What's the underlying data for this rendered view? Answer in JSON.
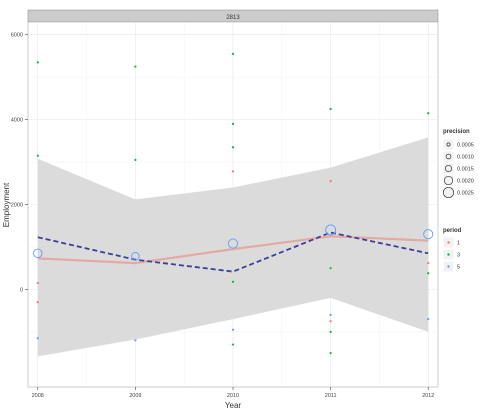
{
  "chart_data": {
    "type": "scatter",
    "facet_label": "2813",
    "xlabel": "Year",
    "ylabel": "Employment",
    "x_ticks": [
      "2008",
      "2009",
      "2010",
      "2011",
      "2012"
    ],
    "y_ticks": [
      "6000",
      "4000",
      "2000",
      "0"
    ],
    "xlim": [
      2007.9,
      2012.1
    ],
    "ylim": [
      -2300,
      6300
    ],
    "grid": true,
    "legend_position": "right",
    "legend_precision": {
      "title": "precision",
      "items": [
        {
          "label": "0.0005",
          "size": 1.6
        },
        {
          "label": "0.0010",
          "size": 2.4
        },
        {
          "label": "0.0015",
          "size": 3.2
        },
        {
          "label": "0.0020",
          "size": 4.2
        },
        {
          "label": "0.0025",
          "size": 5.2
        }
      ]
    },
    "legend_period": {
      "title": "period",
      "items": [
        {
          "label": "1",
          "color": "#f8766d"
        },
        {
          "label": "3",
          "color": "#00ba38"
        },
        {
          "label": "5",
          "color": "#619cff"
        }
      ]
    },
    "points": [
      {
        "x": 2008,
        "y": 5350,
        "period": "3"
      },
      {
        "x": 2008,
        "y": 3150,
        "period": "3"
      },
      {
        "x": 2008,
        "y": 150,
        "period": "1"
      },
      {
        "x": 2008,
        "y": -300,
        "period": "1"
      },
      {
        "x": 2008,
        "y": -1150,
        "period": "5"
      },
      {
        "x": 2009,
        "y": 5250,
        "period": "3"
      },
      {
        "x": 2009,
        "y": 3050,
        "period": "3"
      },
      {
        "x": 2009,
        "y": -1200,
        "period": "5"
      },
      {
        "x": 2010,
        "y": 5550,
        "period": "3"
      },
      {
        "x": 2010,
        "y": 3900,
        "period": "3"
      },
      {
        "x": 2010,
        "y": 3350,
        "period": "3"
      },
      {
        "x": 2010,
        "y": 2780,
        "period": "1"
      },
      {
        "x": 2010,
        "y": 180,
        "period": "3"
      },
      {
        "x": 2010,
        "y": -950,
        "period": "5"
      },
      {
        "x": 2010,
        "y": -1300,
        "period": "3"
      },
      {
        "x": 2011,
        "y": 4250,
        "period": "3"
      },
      {
        "x": 2011,
        "y": 2550,
        "period": "1"
      },
      {
        "x": 2011,
        "y": 500,
        "period": "3"
      },
      {
        "x": 2011,
        "y": -600,
        "period": "5"
      },
      {
        "x": 2011,
        "y": -750,
        "period": "1"
      },
      {
        "x": 2011,
        "y": -1000,
        "period": "3"
      },
      {
        "x": 2011,
        "y": -1500,
        "period": "3"
      },
      {
        "x": 2012,
        "y": 4150,
        "period": "3"
      },
      {
        "x": 2012,
        "y": 620,
        "period": "1"
      },
      {
        "x": 2012,
        "y": 380,
        "period": "3"
      },
      {
        "x": 2012,
        "y": -700,
        "period": "5"
      }
    ],
    "precision_circles": [
      {
        "x": 2008,
        "y": 850,
        "size": 4.2
      },
      {
        "x": 2009,
        "y": 780,
        "size": 3.8
      },
      {
        "x": 2010,
        "y": 1080,
        "size": 4.6
      },
      {
        "x": 2011,
        "y": 1400,
        "size": 5.0
      },
      {
        "x": 2012,
        "y": 1300,
        "size": 4.6
      }
    ],
    "ribbon": {
      "x": [
        2008,
        2009,
        2010,
        2011,
        2012
      ],
      "upper": [
        3080,
        2120,
        2400,
        2870,
        3580
      ],
      "lower": [
        -1580,
        -1180,
        -700,
        -200,
        -1000
      ]
    },
    "dashed_line": {
      "x": [
        2008,
        2009,
        2010,
        2011,
        2012
      ],
      "y": [
        1230,
        700,
        420,
        1340,
        850
      ]
    },
    "solid_line": {
      "x": [
        2008,
        2009,
        2010,
        2011,
        2012
      ],
      "y": [
        730,
        620,
        950,
        1250,
        1150
      ]
    },
    "colors": {
      "dashed_line": "#3a3f9a",
      "solid_line": "#e3a9a4",
      "ribbon": "#d9d9d9",
      "facet_strip": "#cccccc"
    }
  }
}
